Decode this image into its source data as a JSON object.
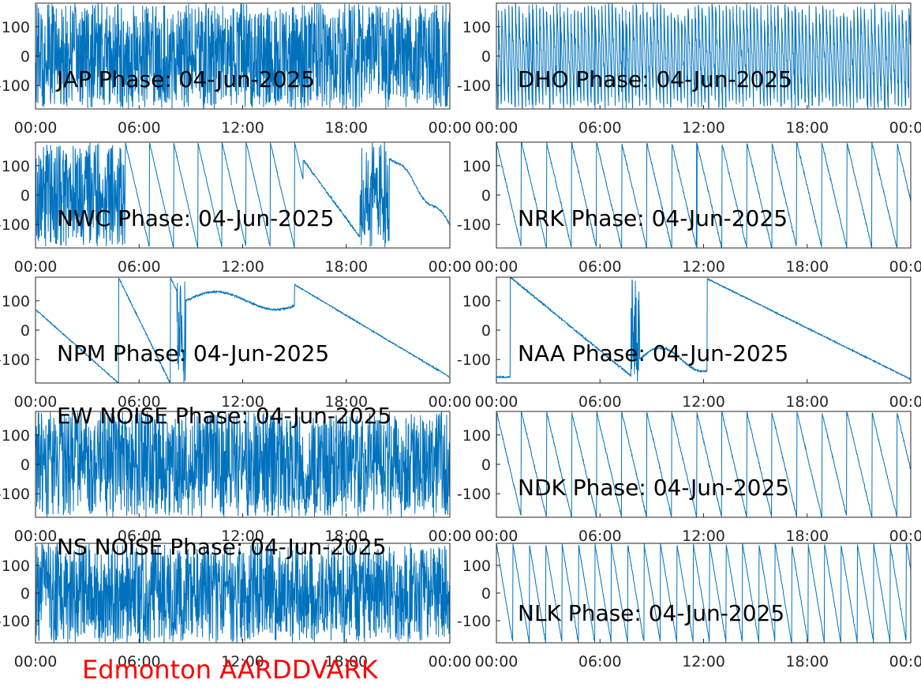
{
  "figure": {
    "footer": "Edmonton AARDDVARK",
    "footer_color": "#ff0000",
    "line_color": "#0072bd"
  },
  "chart_data": [
    {
      "type": "line",
      "title": "JAP Phase: 04-Jun-2025",
      "pattern": "noise",
      "x": {
        "ticks": [
          "00:00",
          "06:00",
          "12:00",
          "18:00",
          "00:00"
        ],
        "range_hours": [
          0,
          24
        ]
      },
      "ylim": [
        -180,
        180
      ],
      "yticks": [
        -100,
        0,
        100
      ]
    },
    {
      "type": "line",
      "title": "DHO Phase: 04-Jun-2025",
      "pattern": "fast_wrap",
      "x": {
        "ticks": [
          "00:00",
          "06:00",
          "12:00",
          "18:00",
          "00:00"
        ],
        "range_hours": [
          0,
          24
        ]
      },
      "ylim": [
        -180,
        180
      ],
      "yticks": [
        -100,
        0,
        100
      ]
    },
    {
      "type": "line",
      "title": "NWC Phase: 04-Jun-2025",
      "pattern": "mixed_wrap",
      "x": {
        "ticks": [
          "00:00",
          "06:00",
          "12:00",
          "18:00",
          "00:00"
        ],
        "range_hours": [
          0,
          24
        ]
      },
      "ylim": [
        -180,
        180
      ],
      "yticks": [
        -100,
        0,
        100
      ]
    },
    {
      "type": "line",
      "title": "NRK Phase: 04-Jun-2025",
      "pattern": "sawtooth",
      "x": {
        "ticks": [
          "00:00",
          "06:00",
          "12:00",
          "18:00",
          "00:00"
        ],
        "range_hours": [
          0,
          24
        ]
      },
      "ylim": [
        -180,
        180
      ],
      "yticks": [
        -100,
        0,
        100
      ]
    },
    {
      "type": "line",
      "title": "NPM Phase: 04-Jun-2025",
      "pattern": "npm",
      "x": {
        "ticks": [
          "00:00",
          "06:00",
          "12:00",
          "18:00",
          "00:00"
        ],
        "range_hours": [
          0,
          24
        ]
      },
      "ylim": [
        -180,
        180
      ],
      "yticks": [
        -100,
        0,
        100
      ]
    },
    {
      "type": "line",
      "title": "NAA Phase: 04-Jun-2025",
      "pattern": "naa",
      "x": {
        "ticks": [
          "00:00",
          "06:00",
          "12:00",
          "18:00",
          "00:00"
        ],
        "range_hours": [
          0,
          24
        ]
      },
      "ylim": [
        -180,
        180
      ],
      "yticks": [
        -100,
        0,
        100
      ]
    },
    {
      "type": "line",
      "title": "EW NOISE Phase: 04-Jun-2025",
      "pattern": "noise",
      "x": {
        "ticks": [
          "00:00",
          "06:00",
          "12:00",
          "18:00",
          "00:00"
        ],
        "range_hours": [
          0,
          24
        ]
      },
      "ylim": [
        -180,
        180
      ],
      "yticks": [
        -100,
        0,
        100
      ]
    },
    {
      "type": "line",
      "title": "NDK Phase: 04-Jun-2025",
      "pattern": "sawtooth",
      "x": {
        "ticks": [
          "00:00",
          "06:00",
          "12:00",
          "18:00",
          "00:00"
        ],
        "range_hours": [
          0,
          24
        ]
      },
      "ylim": [
        -180,
        180
      ],
      "yticks": [
        -100,
        0,
        100
      ]
    },
    {
      "type": "line",
      "title": "NS NOISE Phase: 04-Jun-2025",
      "pattern": "noise",
      "x": {
        "ticks": [
          "00:00",
          "06:00",
          "12:00",
          "18:00",
          "00:00"
        ],
        "range_hours": [
          0,
          24
        ]
      },
      "ylim": [
        -180,
        180
      ],
      "yticks": [
        -100,
        0,
        100
      ]
    },
    {
      "type": "line",
      "title": "NLK Phase: 04-Jun-2025",
      "pattern": "sawtooth_fast",
      "x": {
        "ticks": [
          "00:00",
          "06:00",
          "12:00",
          "18:00",
          "00:00"
        ],
        "range_hours": [
          0,
          24
        ]
      },
      "ylim": [
        -180,
        180
      ],
      "yticks": [
        -100,
        0,
        100
      ]
    }
  ]
}
